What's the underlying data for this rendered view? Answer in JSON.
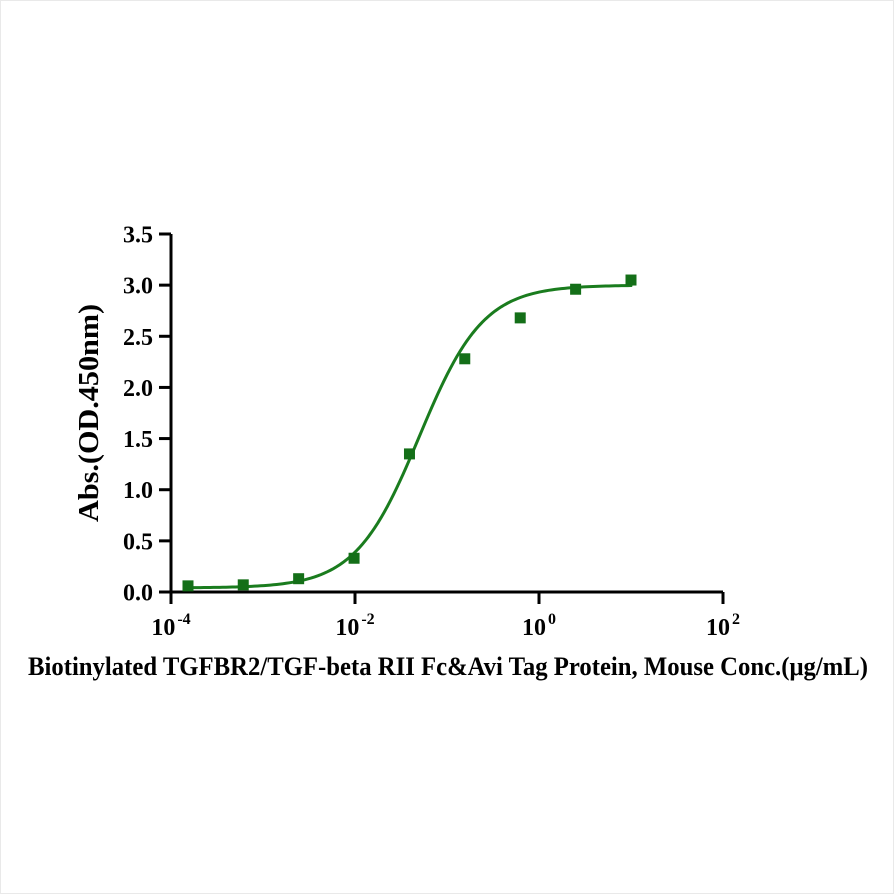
{
  "figure": {
    "background": "#ffffff",
    "border_color": "#e9e9e9"
  },
  "chart_data": {
    "type": "scatter",
    "title": "",
    "xlabel": "Biotinylated TGFBR2/TGF-beta RII Fc&Avi Tag Protein, Mouse Conc.(μg/mL)",
    "ylabel": "Abs.(OD.450nm)",
    "x_scale": "log10",
    "xlim_log": [
      -4,
      2
    ],
    "ylim": [
      0,
      3.5
    ],
    "y_ticks": [
      0.0,
      0.5,
      1.0,
      1.5,
      2.0,
      2.5,
      3.0,
      3.5
    ],
    "y_tick_labels": [
      "0.0",
      "0.5",
      "1.0",
      "1.5",
      "2.0",
      "2.5",
      "3.0",
      "3.5"
    ],
    "x_tick_exponents": [
      -4,
      -2,
      0,
      2
    ],
    "x_tick_base": "10",
    "grid": false,
    "legend": "none",
    "axis_color": "#000000",
    "series": [
      {
        "marker": "square",
        "line_color": "#1a7c1e",
        "marker_color": "#146f18",
        "points": [
          {
            "x": 0.000153,
            "y": 0.06
          },
          {
            "x": 0.00061,
            "y": 0.07
          },
          {
            "x": 0.00244,
            "y": 0.13
          },
          {
            "x": 0.00977,
            "y": 0.33
          },
          {
            "x": 0.0391,
            "y": 1.35
          },
          {
            "x": 0.156,
            "y": 2.28
          },
          {
            "x": 0.625,
            "y": 2.68
          },
          {
            "x": 2.5,
            "y": 2.96
          },
          {
            "x": 10,
            "y": 3.05
          }
        ],
        "fit": {
          "model": "4PL",
          "bottom": 0.04,
          "top": 3.0,
          "ec50": 0.05,
          "hill": 1.25
        }
      }
    ]
  }
}
